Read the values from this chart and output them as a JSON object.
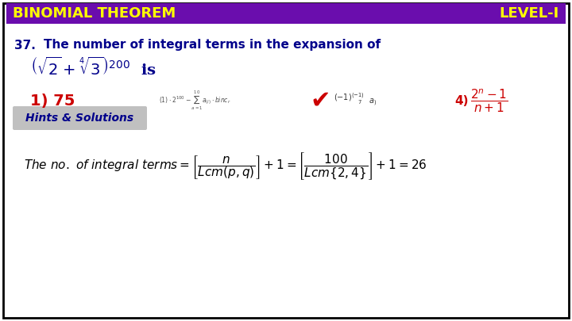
{
  "bg_color": "#ffffff",
  "border_color": "#000000",
  "header_bg": "#6a0dad",
  "header_text_left": "BINOMIAL THEOREM",
  "header_text_right": "LEVEL-I",
  "header_text_color": "#ffff00",
  "question_number": "37.",
  "question_text": "The number of integral terms in the expansion of",
  "question_color": "#00008B",
  "answer_label": "1) 75",
  "answer_color": "#cc0000",
  "hints_bg": "#c0c0c0",
  "hints_text": "Hints & Solutions",
  "hints_text_color": "#00008B",
  "solution_text_color": "#000000",
  "option4_color": "#cc0000"
}
